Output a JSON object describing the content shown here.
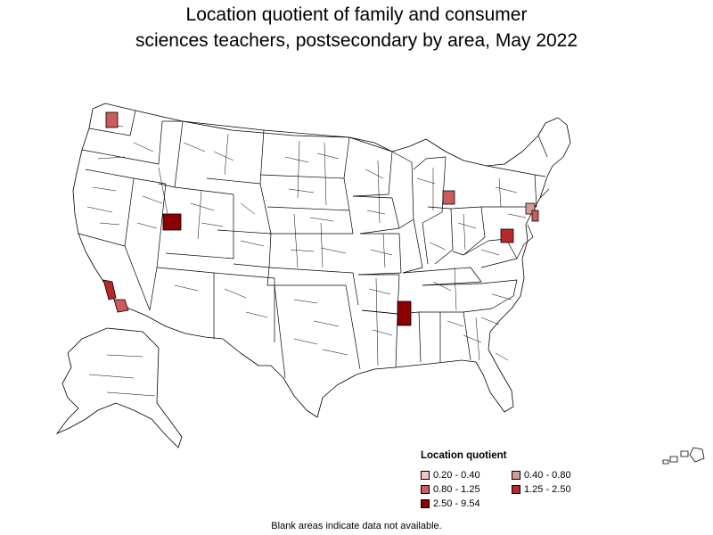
{
  "title_lines": [
    "Location quotient of family and consumer",
    "sciences teachers, postsecondary by area, May 2022"
  ],
  "legend": {
    "title": "Location quotient",
    "items": [
      {
        "label": "0.20 - 0.40",
        "color": "#f4c4c4"
      },
      {
        "label": "0.40 - 0.80",
        "color": "#d49b9b"
      },
      {
        "label": "0.80 - 1.25",
        "color": "#cc5c5c"
      },
      {
        "label": "1.25 - 2.50",
        "color": "#b82828"
      },
      {
        "label": "2.50 - 9.54",
        "color": "#8b0000"
      }
    ]
  },
  "footnote": "Blank areas indicate data not available.",
  "colors": {
    "stroke": "#000000",
    "no_data": "#ffffff"
  }
}
